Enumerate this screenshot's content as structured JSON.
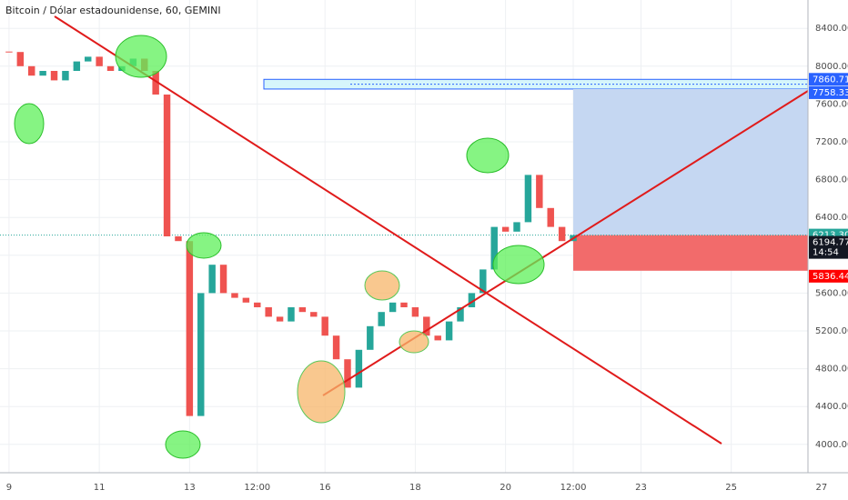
{
  "chart_data": {
    "type": "candlestick",
    "title": "Bitcoin / Dólar estadounidense, 60, GEMINI",
    "x": [
      9,
      9.25,
      9.5,
      9.75,
      10,
      10.25,
      10.5,
      10.75,
      11,
      11.25,
      11.5,
      11.75,
      12,
      12.25,
      12.5,
      12.75,
      13,
      13.25,
      13.5,
      13.75,
      14,
      14.25,
      14.5,
      14.75,
      15,
      15.25,
      15.5,
      15.75,
      16,
      16.25,
      16.5,
      16.75,
      17,
      17.25,
      17.5,
      17.75,
      18,
      18.25,
      18.5,
      18.75,
      19,
      19.25,
      19.5,
      19.75,
      20,
      20.25,
      20.5,
      20.75,
      21,
      21.25,
      21.5
    ],
    "close": [
      8150,
      8000,
      7900,
      7950,
      7850,
      7950,
      8050,
      8100,
      8000,
      7950,
      8000,
      8080,
      7950,
      7700,
      6200,
      6150,
      4300,
      5600,
      5900,
      5600,
      5550,
      5500,
      5450,
      5350,
      5300,
      5450,
      5400,
      5350,
      5150,
      4900,
      4600,
      5000,
      5250,
      5400,
      5500,
      5450,
      5350,
      5150,
      5100,
      5300,
      5450,
      5600,
      5850,
      6300,
      6250,
      6350,
      6850,
      6500,
      6300,
      6150,
      6213.3
    ],
    "up_color": "#26a69a",
    "down_color": "#ef5350",
    "xlim": [
      8.8,
      26.7
    ],
    "xticks": [
      {
        "value": 9,
        "label": "9"
      },
      {
        "value": 11,
        "label": "11"
      },
      {
        "value": 13,
        "label": "13"
      },
      {
        "value": 14.5,
        "label": "12:00"
      },
      {
        "value": 16,
        "label": "16"
      },
      {
        "value": 18,
        "label": "18"
      },
      {
        "value": 20,
        "label": "20"
      },
      {
        "value": 21.5,
        "label": "12:00"
      },
      {
        "value": 23,
        "label": "23"
      },
      {
        "value": 25,
        "label": "25"
      },
      {
        "value": 27,
        "label": "27"
      }
    ],
    "ylim": [
      3700,
      8700
    ],
    "yticks": [
      {
        "value": 4000,
        "label": "4000.00"
      },
      {
        "value": 4400,
        "label": "4400.00"
      },
      {
        "value": 4800,
        "label": "4800.00"
      },
      {
        "value": 5200,
        "label": "5200.00"
      },
      {
        "value": 5600,
        "label": "5600.00"
      },
      {
        "value": 6000,
        "label": "6000.00"
      },
      {
        "value": 6400,
        "label": "6400.00"
      },
      {
        "value": 6800,
        "label": "6800.00"
      },
      {
        "value": 7200,
        "label": "7200.00"
      },
      {
        "value": 7600,
        "label": "7600.00"
      },
      {
        "value": 8000,
        "label": "8000.00"
      },
      {
        "value": 8400,
        "label": "8400.00"
      }
    ],
    "zone": {
      "top": 7860.71,
      "bottom": 7758.33,
      "color": "#2962ff"
    },
    "position": {
      "target": 7758.33,
      "entry": {
        "value": 6213.3,
        "label": "6213.30"
      },
      "stop": 5836.44,
      "profit_color": "#c5d7f2",
      "loss_color": "#f26b6b"
    },
    "last_price": 6194.77,
    "countdown": "14:54",
    "entry_color": "#26a69a",
    "stop_color": "#ff0000"
  }
}
